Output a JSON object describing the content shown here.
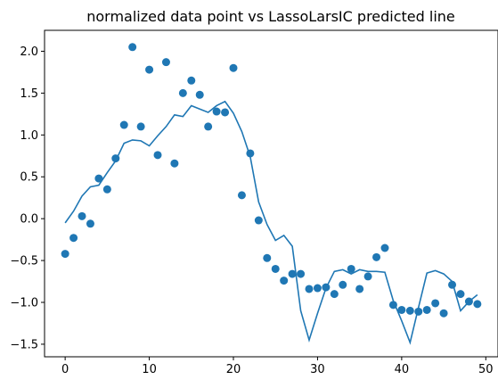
{
  "chart_data": {
    "type": "scatter",
    "title": "normalized data point  vs  LassoLarsIC predicted line",
    "xlabel": "",
    "ylabel": "",
    "xlim": [
      -2.45,
      51.45
    ],
    "ylim": [
      -1.65,
      2.25
    ],
    "xticks": [
      0,
      10,
      20,
      30,
      40,
      50
    ],
    "yticks": [
      -1.5,
      -1.0,
      -0.5,
      0.0,
      0.5,
      1.0,
      1.5,
      2.0
    ],
    "xtick_labels": [
      "0",
      "10",
      "20",
      "30",
      "40",
      "50"
    ],
    "ytick_labels": [
      "−1.5",
      "−1.0",
      "−0.5",
      "0.0",
      "0.5",
      "1.0",
      "1.5",
      "2.0"
    ],
    "grid": false,
    "color": "#1f77b4",
    "series": [
      {
        "kind": "scatter",
        "x": [
          0,
          1,
          2,
          3,
          4,
          5,
          6,
          7,
          8,
          9,
          10,
          11,
          12,
          13,
          14,
          15,
          16,
          17,
          18,
          19,
          20,
          21,
          22,
          23,
          24,
          25,
          26,
          27,
          28,
          29,
          30,
          31,
          32,
          33,
          34,
          35,
          36,
          37,
          38,
          39,
          40,
          41,
          42,
          43,
          44,
          45,
          46,
          47,
          48,
          49
        ],
        "y": [
          -0.42,
          -0.23,
          0.03,
          -0.06,
          0.48,
          0.35,
          0.72,
          1.12,
          2.05,
          1.1,
          1.78,
          0.76,
          1.87,
          0.66,
          1.5,
          1.65,
          1.48,
          1.1,
          1.28,
          1.27,
          1.8,
          0.28,
          0.78,
          -0.02,
          -0.47,
          -0.6,
          -0.74,
          -0.66,
          -0.66,
          -0.84,
          -0.83,
          -0.82,
          -0.9,
          -0.79,
          -0.6,
          -0.84,
          -0.69,
          -0.46,
          -0.35,
          -1.03,
          -1.09,
          -1.1,
          -1.11,
          -1.09,
          -1.01,
          -1.13,
          -0.79,
          -0.9,
          -0.99,
          -1.02
        ]
      },
      {
        "kind": "line",
        "x": [
          0,
          1,
          2,
          3,
          4,
          5,
          6,
          7,
          8,
          9,
          10,
          11,
          12,
          13,
          14,
          15,
          16,
          17,
          18,
          19,
          20,
          21,
          22,
          23,
          24,
          25,
          26,
          27,
          28,
          29,
          30,
          31,
          32,
          33,
          34,
          35,
          36,
          37,
          38,
          39,
          40,
          41,
          42,
          43,
          44,
          45,
          46,
          47,
          48,
          49
        ],
        "y": [
          -0.05,
          0.09,
          0.27,
          0.38,
          0.4,
          0.55,
          0.69,
          0.9,
          0.94,
          0.93,
          0.87,
          0.99,
          1.1,
          1.24,
          1.22,
          1.35,
          1.31,
          1.27,
          1.35,
          1.4,
          1.26,
          1.04,
          0.74,
          0.2,
          -0.07,
          -0.26,
          -0.2,
          -0.33,
          -1.1,
          -1.45,
          -1.13,
          -0.83,
          -0.63,
          -0.61,
          -0.66,
          -0.61,
          -0.63,
          -0.63,
          -0.64,
          -0.98,
          -1.22,
          -1.48,
          -1.06,
          -0.65,
          -0.62,
          -0.66,
          -0.75,
          -1.1,
          -0.99,
          -0.91
        ]
      }
    ]
  }
}
